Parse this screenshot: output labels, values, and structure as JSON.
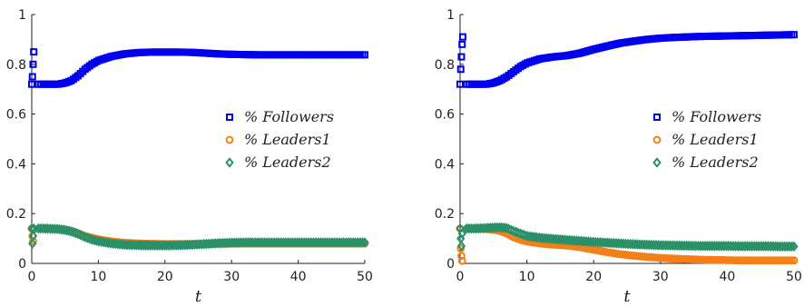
{
  "chart_data": [
    {
      "type": "scatter",
      "xlabel": "t",
      "ylabel": "",
      "xlim": [
        0,
        50
      ],
      "ylim": [
        0,
        1
      ],
      "xticks": [
        "0",
        "10",
        "20",
        "30",
        "40",
        "50"
      ],
      "yticks": [
        "0",
        "0.2",
        "0.4",
        "0.6",
        "0.8",
        "1"
      ],
      "grid": false,
      "legend_position": "right",
      "series": [
        {
          "name": "% Followers",
          "marker": "square",
          "color": "#0000ee",
          "x": [
            0,
            0.1,
            0.2,
            0.3,
            2,
            4,
            5,
            6,
            7,
            8,
            9,
            10,
            12,
            14,
            16,
            18,
            20,
            22,
            24,
            26,
            28,
            30,
            32,
            34,
            36,
            38,
            40,
            42,
            44,
            46,
            48,
            50
          ],
          "y": [
            0.72,
            0.75,
            0.8,
            0.85,
            0.72,
            0.72,
            0.725,
            0.735,
            0.755,
            0.78,
            0.8,
            0.815,
            0.832,
            0.842,
            0.847,
            0.849,
            0.849,
            0.849,
            0.848,
            0.845,
            0.842,
            0.84,
            0.839,
            0.838,
            0.838,
            0.838,
            0.838,
            0.838,
            0.838,
            0.838,
            0.838,
            0.838
          ]
        },
        {
          "name": "% Leaders1",
          "marker": "circle",
          "color": "#f57f17",
          "x": [
            0,
            0.1,
            0.2,
            0.3,
            1,
            2,
            4,
            5,
            6,
            7,
            8,
            9,
            10,
            12,
            14,
            16,
            18,
            20,
            22,
            24,
            26,
            28,
            30,
            32,
            34,
            36,
            38,
            40,
            42,
            44,
            46,
            48,
            50
          ],
          "y": [
            0.14,
            0.11,
            0.09,
            0.135,
            0.14,
            0.14,
            0.138,
            0.136,
            0.13,
            0.12,
            0.11,
            0.103,
            0.097,
            0.088,
            0.083,
            0.08,
            0.079,
            0.078,
            0.078,
            0.078,
            0.078,
            0.079,
            0.08,
            0.08,
            0.08,
            0.08,
            0.08,
            0.08,
            0.08,
            0.08,
            0.08,
            0.08,
            0.08
          ]
        },
        {
          "name": "% Leaders2",
          "marker": "diamond",
          "color": "#2a9068",
          "x": [
            0,
            0.1,
            0.2,
            0.3,
            1,
            2,
            4,
            5,
            6,
            7,
            8,
            9,
            10,
            12,
            14,
            16,
            18,
            20,
            22,
            24,
            26,
            28,
            30,
            32,
            34,
            36,
            38,
            40,
            42,
            44,
            46,
            48,
            50
          ],
          "y": [
            0.14,
            0.08,
            0.11,
            0.14,
            0.14,
            0.14,
            0.138,
            0.134,
            0.128,
            0.118,
            0.106,
            0.096,
            0.089,
            0.08,
            0.075,
            0.073,
            0.072,
            0.072,
            0.073,
            0.075,
            0.078,
            0.081,
            0.083,
            0.084,
            0.084,
            0.084,
            0.084,
            0.084,
            0.084,
            0.084,
            0.084,
            0.084,
            0.084
          ]
        }
      ]
    },
    {
      "type": "scatter",
      "xlabel": "t",
      "ylabel": "",
      "xlim": [
        0,
        50
      ],
      "ylim": [
        0,
        1
      ],
      "xticks": [
        "0",
        "10",
        "20",
        "30",
        "40",
        "50"
      ],
      "yticks": [
        "0",
        "0.2",
        "0.4",
        "0.6",
        "0.8",
        "1"
      ],
      "grid": false,
      "legend_position": "right",
      "series": [
        {
          "name": "% Followers",
          "marker": "square",
          "color": "#0000ee",
          "x": [
            0,
            0.1,
            0.2,
            0.3,
            0.4,
            2,
            4,
            5,
            6,
            7,
            8,
            9,
            10,
            12,
            14,
            16,
            18,
            20,
            22,
            24,
            26,
            28,
            30,
            32,
            34,
            36,
            38,
            40,
            42,
            44,
            46,
            48,
            50
          ],
          "y": [
            0.72,
            0.78,
            0.83,
            0.88,
            0.91,
            0.72,
            0.72,
            0.725,
            0.735,
            0.75,
            0.77,
            0.79,
            0.805,
            0.822,
            0.83,
            0.835,
            0.845,
            0.86,
            0.873,
            0.885,
            0.893,
            0.9,
            0.905,
            0.908,
            0.91,
            0.912,
            0.913,
            0.914,
            0.915,
            0.916,
            0.917,
            0.918,
            0.919
          ]
        },
        {
          "name": "% Leaders1",
          "marker": "circle",
          "color": "#f57f17",
          "x": [
            0,
            0.1,
            0.2,
            0.3,
            1,
            2,
            4,
            5,
            6,
            7,
            8,
            9,
            10,
            12,
            14,
            16,
            18,
            20,
            22,
            24,
            26,
            28,
            30,
            32,
            34,
            36,
            38,
            40,
            42,
            44,
            46,
            48,
            50
          ],
          "y": [
            0.14,
            0.06,
            0.03,
            0.01,
            0.14,
            0.14,
            0.138,
            0.135,
            0.13,
            0.12,
            0.105,
            0.095,
            0.088,
            0.08,
            0.075,
            0.072,
            0.065,
            0.055,
            0.045,
            0.037,
            0.031,
            0.026,
            0.022,
            0.019,
            0.017,
            0.015,
            0.014,
            0.013,
            0.012,
            0.012,
            0.012,
            0.012,
            0.012
          ]
        },
        {
          "name": "% Leaders2",
          "marker": "diamond",
          "color": "#2a9068",
          "x": [
            0,
            0.1,
            0.2,
            0.3,
            1,
            2,
            4,
            5,
            6,
            7,
            8,
            9,
            10,
            12,
            14,
            16,
            18,
            20,
            22,
            24,
            26,
            28,
            30,
            32,
            34,
            36,
            38,
            40,
            42,
            44,
            46,
            48,
            50
          ],
          "y": [
            0.14,
            0.1,
            0.07,
            0.12,
            0.14,
            0.14,
            0.142,
            0.144,
            0.145,
            0.142,
            0.13,
            0.12,
            0.11,
            0.103,
            0.098,
            0.094,
            0.09,
            0.086,
            0.083,
            0.08,
            0.077,
            0.075,
            0.073,
            0.072,
            0.071,
            0.07,
            0.07,
            0.07,
            0.069,
            0.069,
            0.069,
            0.068,
            0.068
          ]
        }
      ]
    }
  ]
}
